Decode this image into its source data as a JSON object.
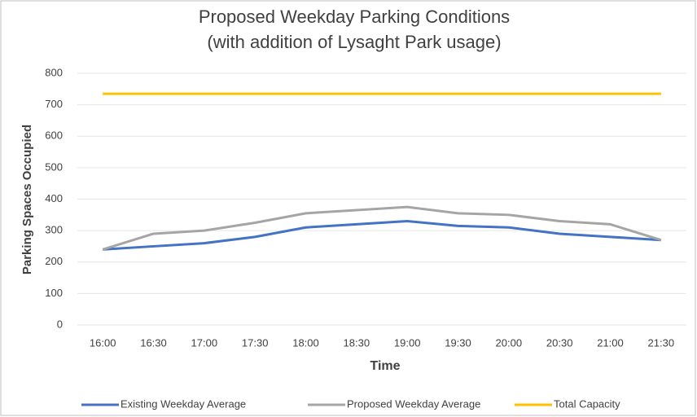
{
  "chart_data": {
    "type": "line",
    "title": "Proposed Weekday Parking Conditions",
    "subtitle": "(with addition of Lysaght Park usage)",
    "x_label": "Time",
    "y_label": "Parking Spaces Occupied",
    "categories": [
      "16:00",
      "16:30",
      "17:00",
      "17:30",
      "18:00",
      "18:30",
      "19:00",
      "19:30",
      "20:00",
      "20:30",
      "21:00",
      "21:30"
    ],
    "series": [
      {
        "name": "Existing Weekday Average",
        "color": "#4472c4",
        "values": [
          240,
          250,
          260,
          280,
          310,
          320,
          330,
          315,
          310,
          290,
          280,
          270
        ]
      },
      {
        "name": "Proposed Weekday Average",
        "color": "#a5a5a5",
        "values": [
          240,
          290,
          300,
          325,
          355,
          365,
          375,
          355,
          350,
          330,
          320,
          270
        ]
      },
      {
        "name": "Total Capacity",
        "color": "#ffc000",
        "values": [
          735,
          735,
          735,
          735,
          735,
          735,
          735,
          735,
          735,
          735,
          735,
          735
        ]
      }
    ],
    "ylim": [
      0,
      800
    ],
    "yticks": [
      0,
      100,
      200,
      300,
      400,
      500,
      600,
      700,
      800
    ],
    "grid": true,
    "legend": "bottom"
  }
}
